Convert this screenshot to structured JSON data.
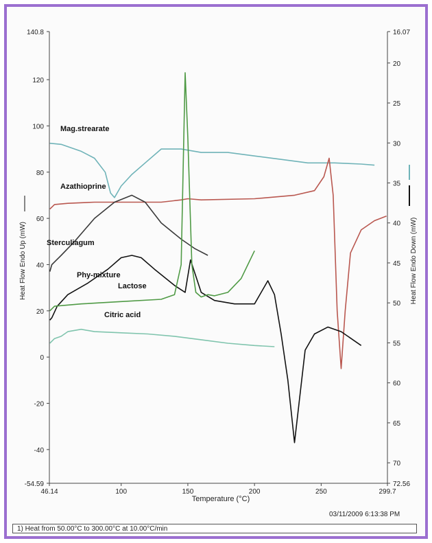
{
  "chart_data": {
    "type": "line",
    "xlabel": "Temperature (°C)",
    "ylabel_left": "Heat Flow Endo Up (mW)",
    "ylabel_right": "Heat Flow Endo Down (mW)",
    "xlim": [
      46.14,
      299.7
    ],
    "ylim_left": [
      -54.59,
      140.8
    ],
    "ylim_right": [
      72.56,
      16.07
    ],
    "x_ticks": [
      "46.14",
      "100",
      "150",
      "200",
      "250",
      "299.7"
    ],
    "y_ticks_left": [
      "140.8",
      "120",
      "100",
      "80",
      "60",
      "40",
      "20",
      "0",
      "-20",
      "-40",
      "-54.59"
    ],
    "y_ticks_right": [
      "16.07",
      "20",
      "25",
      "30",
      "35",
      "40",
      "45",
      "50",
      "55",
      "60",
      "65",
      "70",
      "72.56"
    ],
    "series": [
      {
        "name": "Mag.strearate",
        "color": "#6fb3b8",
        "x": [
          46.5,
          55,
          70,
          80,
          88,
          92,
          95,
          100,
          108,
          118,
          130,
          145,
          160,
          180,
          200,
          220,
          240,
          260,
          280,
          290
        ],
        "y": [
          92.5,
          92,
          89,
          86,
          80,
          71,
          69,
          74,
          79,
          84,
          90,
          90,
          88.5,
          88.5,
          87,
          85.5,
          84,
          84,
          83.5,
          83
        ]
      },
      {
        "name": "Azathioprine",
        "color": "#b9574f",
        "x": [
          46.5,
          50,
          60,
          80,
          100,
          130,
          145,
          150,
          160,
          200,
          230,
          245,
          252,
          256,
          259,
          262,
          265,
          268,
          272,
          280,
          290,
          299
        ],
        "y": [
          64,
          66,
          66.5,
          67,
          67,
          67,
          68,
          68.5,
          68,
          68.5,
          70,
          72,
          78,
          86,
          70,
          20,
          -5,
          20,
          45,
          55,
          59,
          61
        ]
      },
      {
        "name": "Sterculiagum",
        "color": "#3a3a3a",
        "x": [
          46.5,
          48,
          55,
          65,
          80,
          95,
          108,
          118,
          130,
          145,
          155,
          165
        ],
        "y": [
          37,
          40,
          44,
          50,
          60,
          67,
          70,
          67,
          58,
          51,
          47,
          44
        ]
      },
      {
        "name": "Phy-mixture",
        "color": "#111111",
        "x": [
          46.5,
          48,
          52,
          60,
          75,
          90,
          100,
          108,
          115,
          125,
          140,
          148,
          152,
          156,
          160,
          170,
          185,
          200,
          210,
          215,
          220,
          225,
          230,
          233,
          238,
          245,
          255,
          265,
          280
        ],
        "y": [
          16,
          17,
          22,
          27,
          32,
          38,
          43,
          44,
          43,
          38,
          31,
          28,
          42,
          35,
          28,
          24.5,
          23,
          23,
          33,
          27,
          10,
          -10,
          -37,
          -22,
          3,
          10,
          13,
          11,
          5
        ]
      },
      {
        "name": "Lactose",
        "color": "#4f9a45",
        "x": [
          46.5,
          50,
          70,
          100,
          130,
          140,
          145,
          148,
          150,
          153,
          156,
          160,
          165,
          170,
          180,
          190,
          200
        ],
        "y": [
          20,
          22,
          23,
          24,
          25,
          27,
          40,
          123,
          95,
          40,
          28,
          26,
          27,
          26.5,
          28,
          34,
          46
        ]
      },
      {
        "name": "Citric acid",
        "color": "#7fc4ad",
        "x": [
          46.5,
          50,
          55,
          60,
          70,
          80,
          100,
          120,
          140,
          160,
          180,
          200,
          215
        ],
        "y": [
          6,
          8,
          9,
          11,
          12,
          11,
          10.5,
          10,
          9,
          7.5,
          6,
          5,
          4.5
        ]
      }
    ],
    "grid": false,
    "legend": "none (series labels printed inline)"
  },
  "footer": {
    "timestamp": "03/11/2009 6:13:38 PM",
    "note": "1)  Heat from 50.00°C to 300.00°C at 10.00°C/min"
  },
  "colors": {
    "frame": "#9b6fd0"
  }
}
